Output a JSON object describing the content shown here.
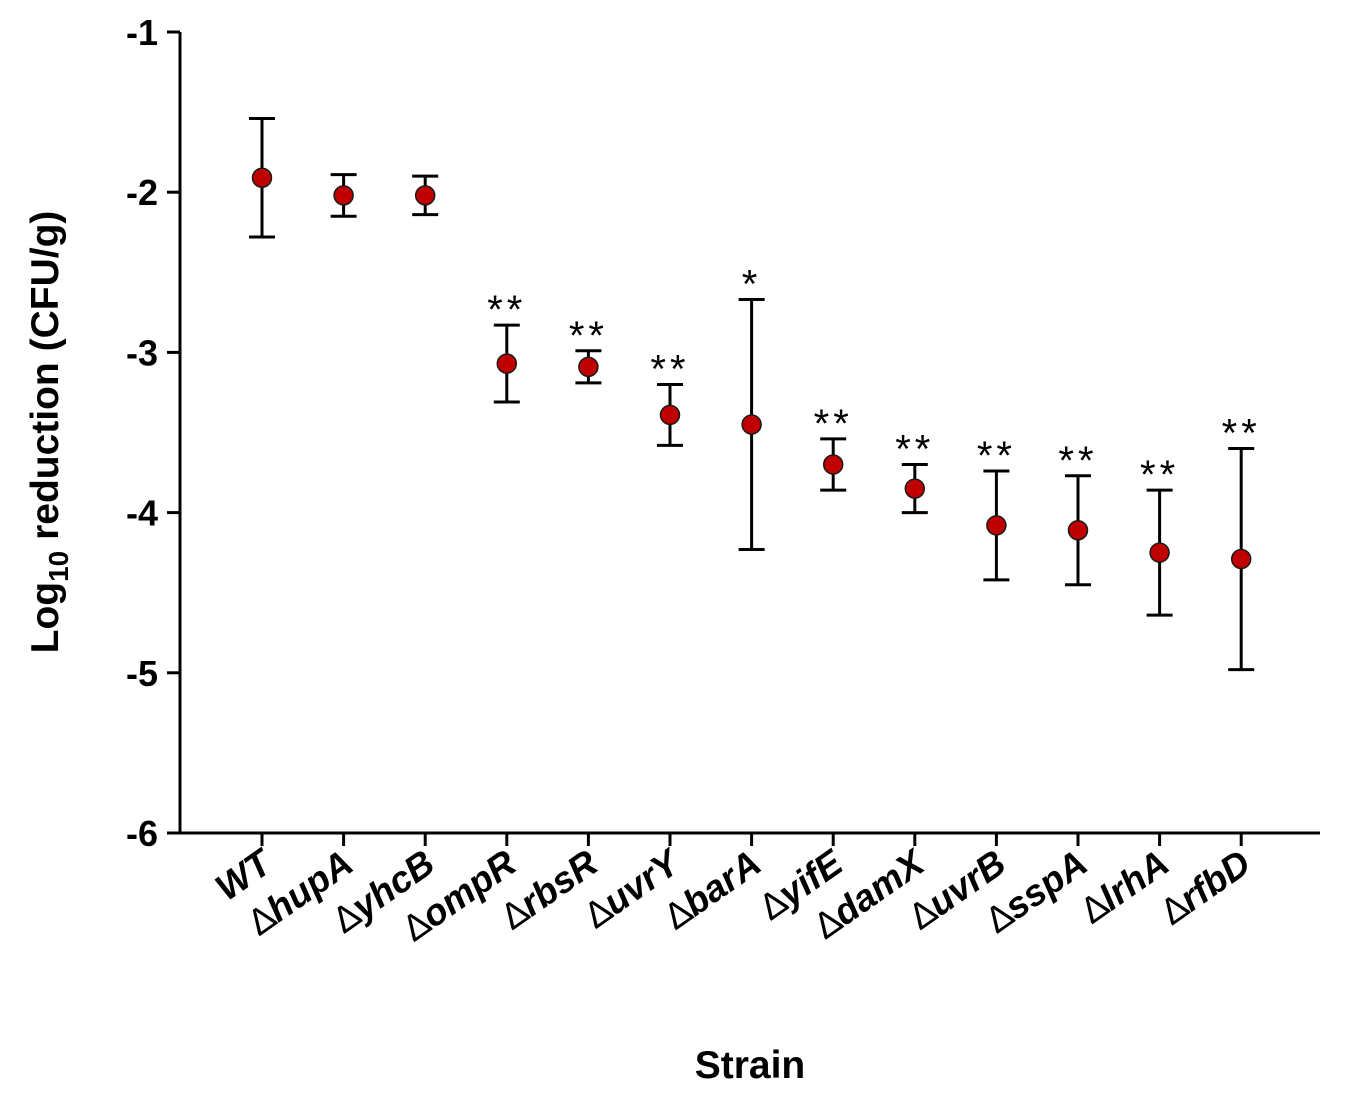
{
  "chart_data": {
    "type": "scatter",
    "title": "",
    "xlabel": "Strain",
    "ylabel_main": "Log",
    "ylabel_sub": "10",
    "ylabel_rest": " reduction (CFU/g)",
    "ylim": [
      -6,
      -1
    ],
    "yticks": [
      -1,
      -2,
      -3,
      -4,
      -5,
      -6
    ],
    "ytick_labels": [
      "-1",
      "-2",
      "-3",
      "-4",
      "-5",
      "-6"
    ],
    "delta_symbol": "∆",
    "categories": [
      {
        "prefix": "",
        "name": "WT"
      },
      {
        "prefix": "∆",
        "name": "hupA"
      },
      {
        "prefix": "∆",
        "name": "yhcB"
      },
      {
        "prefix": "∆",
        "name": "ompR"
      },
      {
        "prefix": "∆",
        "name": "rbsR"
      },
      {
        "prefix": "∆",
        "name": "uvrY"
      },
      {
        "prefix": "∆",
        "name": "barA"
      },
      {
        "prefix": "∆",
        "name": "yifE"
      },
      {
        "prefix": "∆",
        "name": "damX"
      },
      {
        "prefix": "∆",
        "name": "uvrB"
      },
      {
        "prefix": "∆",
        "name": "sspA"
      },
      {
        "prefix": "∆",
        "name": "lrhA"
      },
      {
        "prefix": "∆",
        "name": "rfbD"
      }
    ],
    "series": [
      {
        "name": "Log10 reduction",
        "values": [
          -1.91,
          -2.02,
          -2.02,
          -3.07,
          -3.09,
          -3.39,
          -3.45,
          -3.7,
          -3.85,
          -4.08,
          -4.11,
          -4.25,
          -4.29
        ],
        "err_upper": [
          -1.54,
          -1.89,
          -1.9,
          -2.83,
          -2.99,
          -3.2,
          -2.67,
          -3.54,
          -3.7,
          -3.74,
          -3.77,
          -3.86,
          -3.6
        ],
        "err_lower": [
          -2.28,
          -2.15,
          -2.14,
          -3.31,
          -3.19,
          -3.58,
          -4.23,
          -3.86,
          -4.0,
          -4.42,
          -4.45,
          -4.64,
          -4.98
        ],
        "significance": [
          "",
          "",
          "",
          "**",
          "**",
          "**",
          "*",
          "**",
          "**",
          "**",
          "**",
          "**",
          "**"
        ]
      }
    ],
    "colors": {
      "marker_fill": "#c00000",
      "marker_stroke": "#1a1a1a",
      "axis": "#000000"
    },
    "grid": false,
    "legend": "none"
  }
}
